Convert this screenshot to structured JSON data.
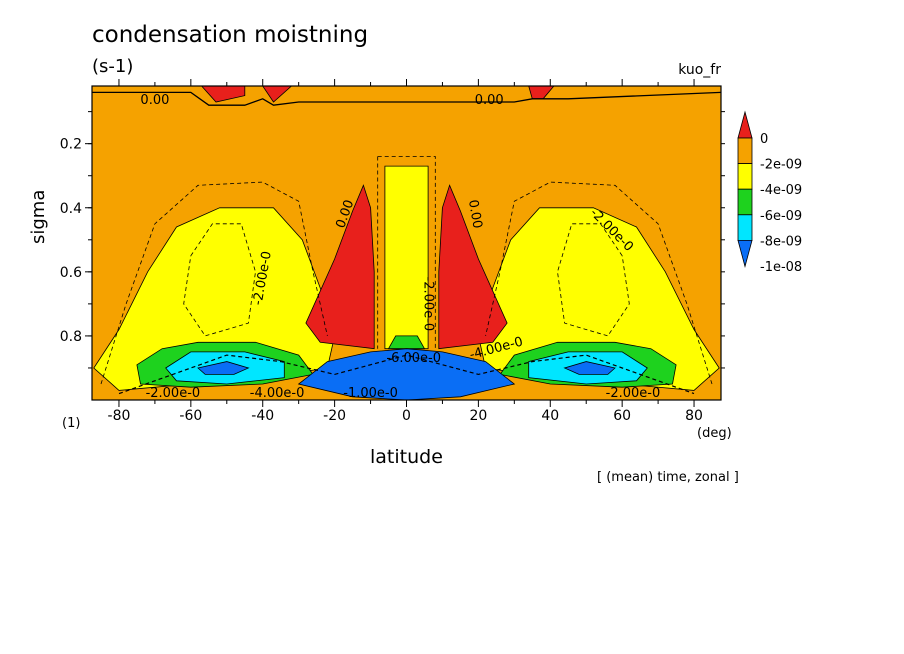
{
  "title": "condensation moistning",
  "units": "(s-1)",
  "var_name": "kuo_fr",
  "y_unit": "(1)",
  "x_unit": "(deg)",
  "note": "[ (mean) time, zonal ]",
  "chart_data": {
    "type": "heatmap",
    "xlabel": "latitude",
    "ylabel": "sigma",
    "xlim": [
      -87.5,
      87.5
    ],
    "ylim": [
      1.0,
      0.02
    ],
    "xticks": [
      -80,
      -60,
      -40,
      -20,
      0,
      20,
      40,
      60,
      80
    ],
    "yticks": [
      0.2,
      0.4,
      0.6,
      0.8
    ],
    "levels": [
      0,
      -2e-09,
      -4e-09,
      -6e-09,
      -8e-09,
      -1e-08
    ],
    "colorbar_labels": [
      "0",
      "-2e-09",
      "-4e-09",
      "-6e-09",
      "-8e-09",
      "-1e-08"
    ],
    "colors": {
      "above_0": "#e8201c",
      "0_to_-2e-09": "#f5a200",
      "-2e-09_to_-4e-09": "#ffff00",
      "-4e-09_to_-6e-09": "#1ed21e",
      "-6e-09_to_-8e-09": "#00e6ff",
      "below_-8e-09": "#0a6ef5"
    },
    "contour_labels": [
      "0.00",
      "0.00",
      "0.00",
      "0.00",
      "-2.00e-0",
      "-2.00e-0",
      "-2.00e-0",
      "-2.00e-0",
      "-2.00e-0",
      "-4.00e-0",
      "-4.00e-0",
      "-6.00e-0",
      "-1.00e-0"
    ],
    "regions": [
      {
        "level": "above_0",
        "points": [
          [
            -57,
            0.02
          ],
          [
            -45,
            0.02
          ],
          [
            -45,
            0.05
          ],
          [
            -53,
            0.07
          ]
        ]
      },
      {
        "level": "above_0",
        "points": [
          [
            -40,
            0.02
          ],
          [
            -32,
            0.02
          ],
          [
            -37,
            0.07
          ]
        ]
      },
      {
        "level": "above_0",
        "points": [
          [
            34,
            0.02
          ],
          [
            41,
            0.02
          ],
          [
            38,
            0.06
          ],
          [
            35,
            0.06
          ]
        ]
      },
      {
        "level": "-2e-09_to_-4e-09",
        "points": [
          [
            -87,
            0.9
          ],
          [
            -80,
            0.78
          ],
          [
            -72,
            0.6
          ],
          [
            -64,
            0.46
          ],
          [
            -52,
            0.4
          ],
          [
            -37,
            0.4
          ],
          [
            -29,
            0.5
          ],
          [
            -24,
            0.65
          ],
          [
            -20,
            0.8
          ],
          [
            -22,
            0.9
          ],
          [
            -40,
            0.93
          ],
          [
            -60,
            0.95
          ],
          [
            -80,
            0.97
          ]
        ]
      },
      {
        "level": "-2e-09_to_-4e-09",
        "points": [
          [
            87,
            0.9
          ],
          [
            80,
            0.78
          ],
          [
            72,
            0.6
          ],
          [
            64,
            0.46
          ],
          [
            52,
            0.4
          ],
          [
            37,
            0.4
          ],
          [
            29,
            0.5
          ],
          [
            24,
            0.65
          ],
          [
            20,
            0.8
          ],
          [
            22,
            0.9
          ],
          [
            40,
            0.93
          ],
          [
            60,
            0.95
          ],
          [
            80,
            0.97
          ]
        ]
      },
      {
        "level": "-2e-09_to_-4e-09",
        "points": [
          [
            -6,
            0.27
          ],
          [
            6,
            0.27
          ],
          [
            6,
            0.84
          ],
          [
            -6,
            0.84
          ]
        ]
      },
      {
        "level": "above_0",
        "points": [
          [
            -28,
            0.76
          ],
          [
            -20,
            0.56
          ],
          [
            -15,
            0.41
          ],
          [
            -12,
            0.33
          ],
          [
            -10,
            0.4
          ],
          [
            -9,
            0.6
          ],
          [
            -9,
            0.84
          ],
          [
            -24,
            0.82
          ]
        ]
      },
      {
        "level": "above_0",
        "points": [
          [
            28,
            0.76
          ],
          [
            20,
            0.56
          ],
          [
            15,
            0.41
          ],
          [
            12,
            0.33
          ],
          [
            10,
            0.4
          ],
          [
            9,
            0.6
          ],
          [
            9,
            0.84
          ],
          [
            24,
            0.82
          ]
        ]
      },
      {
        "level": "-4e-09_to_-6e-09",
        "points": [
          [
            -75,
            0.89
          ],
          [
            -68,
            0.84
          ],
          [
            -58,
            0.82
          ],
          [
            -42,
            0.82
          ],
          [
            -30,
            0.86
          ],
          [
            -26,
            0.92
          ],
          [
            -40,
            0.95
          ],
          [
            -60,
            0.96
          ],
          [
            -74,
            0.95
          ]
        ]
      },
      {
        "level": "-4e-09_to_-6e-09",
        "points": [
          [
            75,
            0.89
          ],
          [
            68,
            0.84
          ],
          [
            58,
            0.82
          ],
          [
            42,
            0.82
          ],
          [
            30,
            0.86
          ],
          [
            26,
            0.92
          ],
          [
            40,
            0.95
          ],
          [
            60,
            0.96
          ],
          [
            74,
            0.95
          ]
        ]
      },
      {
        "level": "-4e-09_to_-6e-09",
        "points": [
          [
            -3,
            0.8
          ],
          [
            3,
            0.8
          ],
          [
            5,
            0.84
          ],
          [
            -5,
            0.84
          ]
        ]
      },
      {
        "level": "-6e-09_to_-8e-09",
        "points": [
          [
            -67,
            0.9
          ],
          [
            -60,
            0.85
          ],
          [
            -45,
            0.85
          ],
          [
            -34,
            0.88
          ],
          [
            -34,
            0.93
          ],
          [
            -50,
            0.95
          ],
          [
            -64,
            0.94
          ]
        ]
      },
      {
        "level": "-6e-09_to_-8e-09",
        "points": [
          [
            67,
            0.9
          ],
          [
            60,
            0.85
          ],
          [
            45,
            0.85
          ],
          [
            34,
            0.88
          ],
          [
            34,
            0.93
          ],
          [
            50,
            0.95
          ],
          [
            64,
            0.94
          ]
        ]
      },
      {
        "level": "below_-8e-09",
        "points": [
          [
            -58,
            0.9
          ],
          [
            -50,
            0.88
          ],
          [
            -44,
            0.9
          ],
          [
            -48,
            0.92
          ],
          [
            -56,
            0.92
          ]
        ]
      },
      {
        "level": "below_-8e-09",
        "points": [
          [
            58,
            0.9
          ],
          [
            50,
            0.88
          ],
          [
            44,
            0.9
          ],
          [
            48,
            0.92
          ],
          [
            56,
            0.92
          ]
        ]
      },
      {
        "level": "below_-8e-09",
        "points": [
          [
            -30,
            0.95
          ],
          [
            -22,
            0.88
          ],
          [
            -10,
            0.85
          ],
          [
            0,
            0.84
          ],
          [
            10,
            0.85
          ],
          [
            22,
            0.88
          ],
          [
            30,
            0.95
          ],
          [
            15,
            0.99
          ],
          [
            0,
            1.0
          ],
          [
            -15,
            0.99
          ]
        ]
      }
    ]
  }
}
